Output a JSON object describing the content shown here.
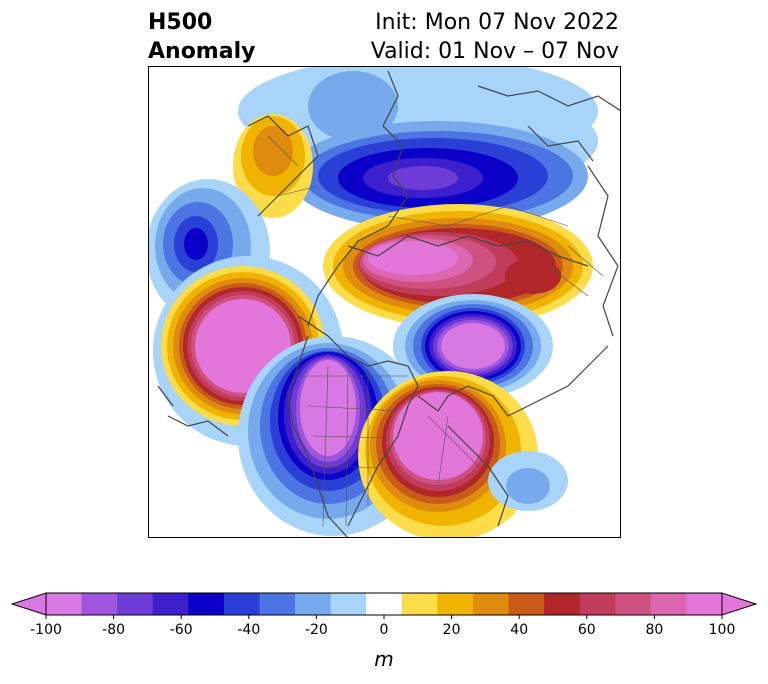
{
  "title": {
    "line1_left": "H500",
    "line2_left": "Anomaly",
    "line1_right": "Init: Mon 07 Nov 2022",
    "line2_right": "Valid: 01 Nov – 07 Nov"
  },
  "colorbar": {
    "ticks": [
      "-100",
      "-80",
      "-60",
      "-40",
      "-20",
      "0",
      "20",
      "40",
      "60",
      "80",
      "100"
    ],
    "unit": "m",
    "colors": [
      "#d778e3",
      "#a055de",
      "#6e3bd6",
      "#3d1fce",
      "#0b00c8",
      "#2a3fd6",
      "#4c74e2",
      "#77aaec",
      "#a7d4f8",
      "#ffffff",
      "#fddc4a",
      "#f0b400",
      "#df8b10",
      "#c95b1a",
      "#b0262a",
      "#c13b5a",
      "#cf5182",
      "#dc67b0",
      "#e276d9"
    ]
  },
  "map": {
    "projection": "north-polar-stereographic",
    "features": [
      "positive-anomaly-west-canada-us",
      "negative-anomaly-western-us",
      "positive-anomaly-eastern-us",
      "negative-anomaly-eurasia",
      "positive-anomaly-siberia",
      "negative-anomaly-atlantic"
    ]
  }
}
